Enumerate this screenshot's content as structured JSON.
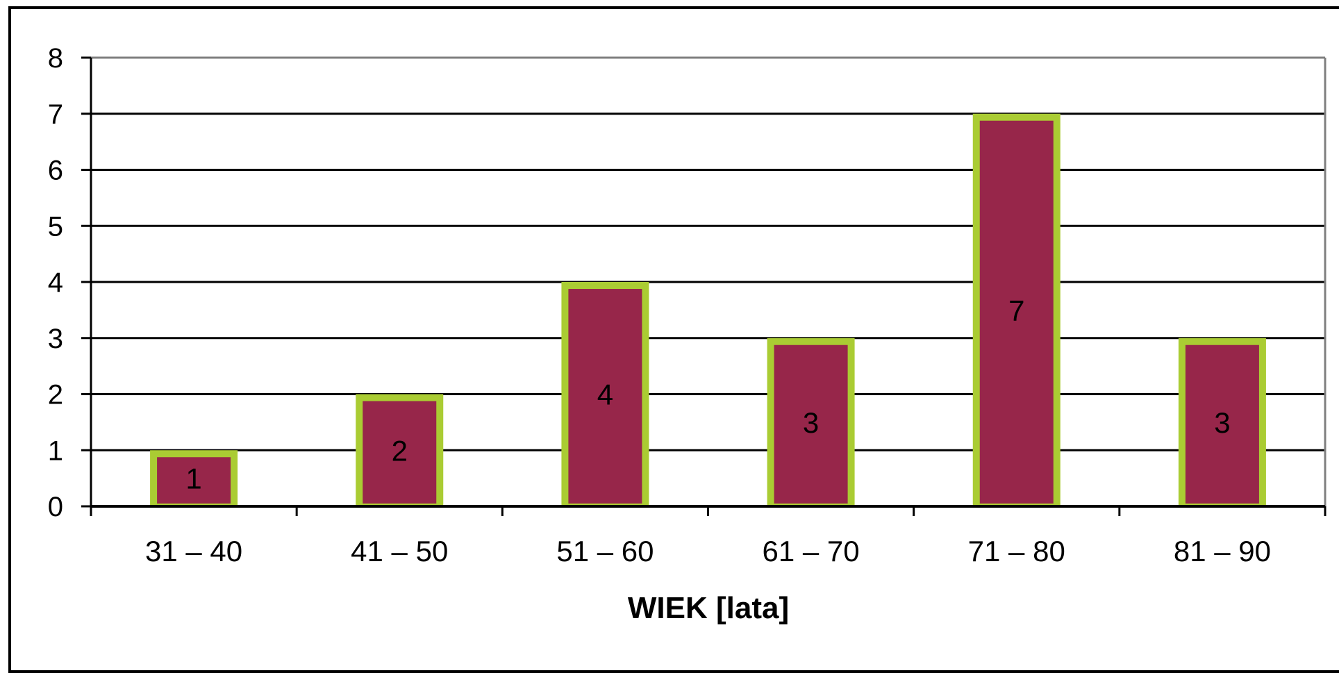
{
  "chart_data": {
    "type": "bar",
    "title": "",
    "xlabel": "WIEK [lata]",
    "ylabel": "",
    "categories": [
      "31 – 40",
      "41 – 50",
      "51 – 60",
      "61 – 70",
      "71 – 80",
      "81 – 90"
    ],
    "values": [
      1,
      2,
      4,
      3,
      7,
      3
    ],
    "data_labels": [
      "1",
      "2",
      "4",
      "3",
      "7",
      "3"
    ],
    "y_ticks": [
      "0",
      "1",
      "2",
      "3",
      "4",
      "5",
      "6",
      "7",
      "8"
    ],
    "ylim": [
      0,
      8
    ],
    "grid": true,
    "legend": "none",
    "colors": {
      "bar_fill": "#97264A",
      "bar_border": "#AACC33",
      "grid": "#000000",
      "axis": "#000000"
    }
  }
}
